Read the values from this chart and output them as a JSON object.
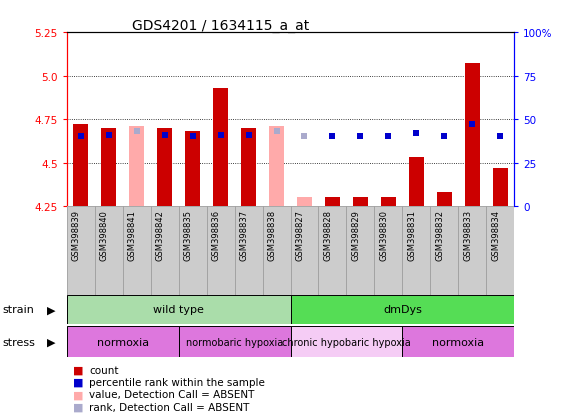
{
  "title": "GDS4201 / 1634115_a_at",
  "samples": [
    "GSM398839",
    "GSM398840",
    "GSM398841",
    "GSM398842",
    "GSM398835",
    "GSM398836",
    "GSM398837",
    "GSM398838",
    "GSM398827",
    "GSM398828",
    "GSM398829",
    "GSM398830",
    "GSM398831",
    "GSM398832",
    "GSM398833",
    "GSM398834"
  ],
  "count_values": [
    4.72,
    4.7,
    4.71,
    4.7,
    4.68,
    4.93,
    4.7,
    4.71,
    4.3,
    4.3,
    4.3,
    4.3,
    4.53,
    4.33,
    5.07,
    4.47
  ],
  "detection_call": [
    "P",
    "P",
    "A",
    "P",
    "P",
    "P",
    "P",
    "A",
    "A",
    "P",
    "P",
    "P",
    "P",
    "P",
    "P",
    "P"
  ],
  "percentile_rank": [
    40,
    41,
    43,
    41,
    40,
    41,
    41,
    43,
    40,
    40,
    40,
    40,
    42,
    40,
    47,
    40
  ],
  "rank_absent": [
    false,
    false,
    true,
    false,
    false,
    false,
    false,
    true,
    true,
    false,
    false,
    false,
    false,
    false,
    false,
    false
  ],
  "ylim_left": [
    4.25,
    5.25
  ],
  "ylim_right": [
    0,
    100
  ],
  "yticks_left": [
    4.25,
    4.5,
    4.75,
    5.0,
    5.25
  ],
  "yticks_right": [
    0,
    25,
    50,
    75,
    100
  ],
  "bar_color_present": "#cc0000",
  "bar_color_absent": "#ffaaaa",
  "blue_color": "#0000cc",
  "blue_absent_color": "#aaaacc",
  "bar_width": 0.55,
  "strain_groups": [
    {
      "label": "wild type",
      "start": 0,
      "end": 8,
      "color": "#aaddaa"
    },
    {
      "label": "dmDys",
      "start": 8,
      "end": 16,
      "color": "#55dd55"
    }
  ],
  "stress_groups": [
    {
      "label": "normoxia",
      "start": 0,
      "end": 4,
      "color": "#dd77dd"
    },
    {
      "label": "normobaric hypoxia",
      "start": 4,
      "end": 8,
      "color": "#dd77dd"
    },
    {
      "label": "chronic hypobaric hypoxia",
      "start": 8,
      "end": 12,
      "color": "#f5ccf5"
    },
    {
      "label": "normoxia",
      "start": 12,
      "end": 16,
      "color": "#dd77dd"
    }
  ],
  "legend_items": [
    {
      "label": "count",
      "color": "#cc0000"
    },
    {
      "label": "percentile rank within the sample",
      "color": "#0000cc"
    },
    {
      "label": "value, Detection Call = ABSENT",
      "color": "#ffaaaa"
    },
    {
      "label": "rank, Detection Call = ABSENT",
      "color": "#aaaacc"
    }
  ],
  "background_color": "#ffffff",
  "label_bg_color": "#cccccc",
  "label_border_color": "#999999"
}
